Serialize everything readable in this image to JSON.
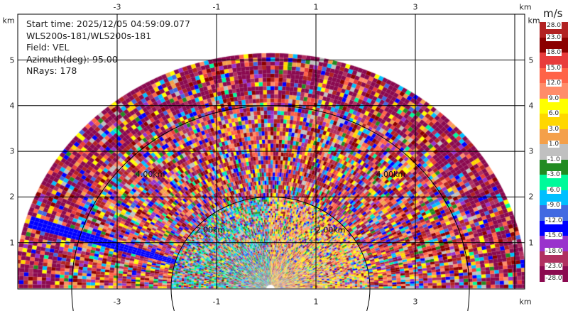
{
  "chart_data": {
    "type": "heatmap",
    "subtype": "radar-ppi",
    "info_lines": [
      "Start time: 2025/12/05 04:59:09.077",
      "WLS200s-181/WLS200s-181",
      "Field: VEL",
      "Azimuth(deg): 95.00",
      "NRays: 178"
    ],
    "x_unit": "km",
    "y_unit": "km",
    "x_ticks": [
      "-3",
      "-1",
      "1",
      "3"
    ],
    "y_ticks": [
      "5",
      "4",
      "3",
      "2",
      "1"
    ],
    "xlim": [
      -5,
      5.2
    ],
    "ylim": [
      0,
      6
    ],
    "range_rings": [
      {
        "range_km": 2,
        "label": "2.00km"
      },
      {
        "range_km": 4,
        "label": "4.00km"
      }
    ],
    "max_range_km": 5.1,
    "sector_deg": [
      -90,
      90
    ],
    "grid": true,
    "colorbar": {
      "title": "m/s",
      "placement": "right",
      "labels": [
        "28.0",
        "23.0",
        "18.0",
        "15.0",
        "12.0",
        "9.0",
        "6.0",
        "3.0",
        "1.0",
        "-1.0",
        "-3.0",
        "-6.0",
        "-9.0",
        "-12.0",
        "-15.0",
        "-18.0",
        "-23.0",
        "-28.0"
      ],
      "colors": [
        "#b22222",
        "#8b0000",
        "#e83c3c",
        "#ff6347",
        "#ff8c69",
        "#ffff00",
        "#ffd700",
        "#f4a04a",
        "#c0c0c0",
        "#228b22",
        "#00fa9a",
        "#00bfff",
        "#4169e1",
        "#0000ff",
        "#9932cc",
        "#b03060",
        "#8b0a50"
      ]
    }
  }
}
